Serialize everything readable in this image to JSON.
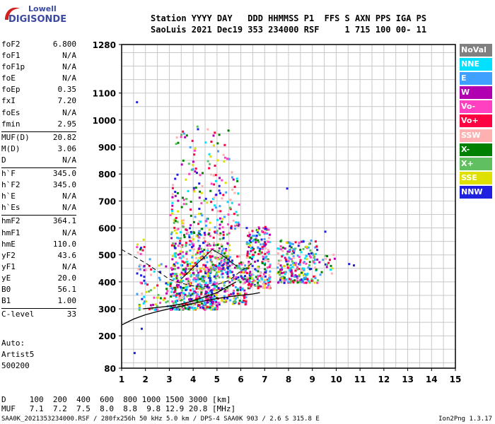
{
  "logo": {
    "line1": "Lowell",
    "line2": "DIGISONDE"
  },
  "header": {
    "line1": "Station YYYY DAY   DDD HHMMSS P1  FFS S AXN PPS IGA PS",
    "line2": "SaoLuis 2021 Dec19 353 234000 RSF     1 715 100 00- 11"
  },
  "params_groups": [
    [
      [
        "foF2",
        "6.800"
      ],
      [
        "foF1",
        "N/A"
      ],
      [
        "foF1p",
        "N/A"
      ],
      [
        "foE",
        "N/A"
      ],
      [
        "foEp",
        "0.35"
      ],
      [
        "fxI",
        "7.20"
      ],
      [
        "foEs",
        "N/A"
      ],
      [
        "fmin",
        "2.95"
      ]
    ],
    [
      [
        "MUF(D)",
        "20.82"
      ],
      [
        "M(D)",
        "3.06"
      ],
      [
        "D",
        "N/A"
      ]
    ],
    [
      [
        "h`F",
        "345.0"
      ],
      [
        "h`F2",
        "345.0"
      ],
      [
        "h`E",
        "N/A"
      ],
      [
        "h`Es",
        "N/A"
      ]
    ],
    [
      [
        "hmF2",
        "364.1"
      ],
      [
        "hmF1",
        "N/A"
      ],
      [
        "hmE",
        "110.0"
      ],
      [
        "yF2",
        "43.6"
      ],
      [
        "yF1",
        "N/A"
      ],
      [
        "yE",
        "20.0"
      ],
      [
        "B0",
        "56.1"
      ],
      [
        "B1",
        "1.00"
      ]
    ],
    [
      [
        "C-level",
        "33"
      ]
    ]
  ],
  "auto_block": [
    "Auto:",
    "Artist5",
    "500200"
  ],
  "muf_table": {
    "line1": "D     100  200  400  600  800 1000 1500 3000 [km]",
    "line2": "MUF   7.1  7.2  7.5  8.0  8.8  9.8 12.9 20.8 [MHz]"
  },
  "footer": {
    "left": "SAA0K_2021353234000.RSF / 280fx256h 50 kHz 5.0 km / DPS-4 SAA0K 903 / 2.6 S 315.8 E",
    "right": "Ion2Png 1.3.17"
  },
  "legend": [
    {
      "label": "NoVal",
      "color": "#808080"
    },
    {
      "label": "NNE",
      "color": "#00e0ff"
    },
    {
      "label": "E",
      "color": "#40a0ff"
    },
    {
      "label": "W",
      "color": "#b000b0"
    },
    {
      "label": "Vo-",
      "color": "#ff40c0"
    },
    {
      "label": "Vo+",
      "color": "#ff0040"
    },
    {
      "label": "SSW",
      "color": "#ffb0b0"
    },
    {
      "label": "X-",
      "color": "#008000"
    },
    {
      "label": "X+",
      "color": "#60c060"
    },
    {
      "label": "SSE",
      "color": "#e0e000"
    },
    {
      "label": "NNW",
      "color": "#2020e0"
    }
  ],
  "chart_data": {
    "type": "scatter",
    "xlim": [
      1,
      15
    ],
    "ylim": [
      80,
      1280
    ],
    "x_ticks": [
      1,
      2,
      3,
      4,
      5,
      6,
      7,
      8,
      9,
      10,
      11,
      12,
      13,
      14,
      15
    ],
    "y_ticks": [
      80,
      200,
      300,
      400,
      500,
      600,
      700,
      800,
      900,
      1000,
      1100,
      1280
    ],
    "grid": true,
    "profile_curve": [
      [
        1.0,
        240
      ],
      [
        1.5,
        262
      ],
      [
        2.0,
        278
      ],
      [
        2.5,
        290
      ],
      [
        3.0,
        300
      ],
      [
        3.5,
        310
      ],
      [
        4.0,
        320
      ],
      [
        4.5,
        330
      ],
      [
        5.0,
        338
      ],
      [
        5.5,
        345
      ],
      [
        6.0,
        350
      ],
      [
        6.5,
        355
      ],
      [
        6.8,
        360
      ]
    ],
    "ordinary_trace": [
      [
        1.9,
        300
      ],
      [
        2.5,
        305
      ],
      [
        3.0,
        310
      ],
      [
        3.5,
        318
      ],
      [
        4.0,
        330
      ],
      [
        4.5,
        345
      ],
      [
        5.0,
        360
      ],
      [
        5.5,
        385
      ],
      [
        5.8,
        400
      ]
    ],
    "dashed_curve": [
      [
        1.0,
        520
      ],
      [
        1.5,
        495
      ],
      [
        2.0,
        470
      ],
      [
        2.5,
        440
      ],
      [
        3.0,
        410
      ],
      [
        3.5,
        395
      ],
      [
        4.0,
        385
      ],
      [
        4.5,
        383
      ],
      [
        5.0,
        390
      ],
      [
        5.5,
        405
      ],
      [
        6.0,
        440
      ],
      [
        6.5,
        470
      ]
    ],
    "extra_trace": [
      [
        3.5,
        410
      ],
      [
        4.2,
        470
      ],
      [
        4.8,
        520
      ],
      [
        5.2,
        500
      ],
      [
        5.8,
        460
      ]
    ],
    "clusters": [
      {
        "x": [
          3.0,
          5.0
        ],
        "y": [
          300,
          450
        ],
        "n": 420,
        "seed": 1
      },
      {
        "x": [
          3.0,
          5.5
        ],
        "y": [
          450,
          600
        ],
        "n": 280,
        "seed": 2
      },
      {
        "x": [
          3.0,
          6.0
        ],
        "y": [
          600,
          800
        ],
        "n": 140,
        "seed": 3
      },
      {
        "x": [
          3.2,
          5.6
        ],
        "y": [
          800,
          980
        ],
        "n": 55,
        "seed": 4
      },
      {
        "x": [
          5.0,
          6.2
        ],
        "y": [
          320,
          500
        ],
        "n": 160,
        "seed": 5
      },
      {
        "x": [
          6.2,
          7.2
        ],
        "y": [
          380,
          610
        ],
        "n": 220,
        "seed": 6
      },
      {
        "x": [
          7.5,
          9.2
        ],
        "y": [
          400,
          560
        ],
        "n": 240,
        "seed": 7
      },
      {
        "x": [
          9.2,
          10.0
        ],
        "y": [
          430,
          510
        ],
        "n": 18,
        "seed": 8
      },
      {
        "x": [
          1.6,
          2.9
        ],
        "y": [
          300,
          470
        ],
        "n": 70,
        "seed": 9
      },
      {
        "x": [
          1.6,
          2.2
        ],
        "y": [
          480,
          560
        ],
        "n": 10,
        "seed": 10
      }
    ],
    "isolated_points": [
      [
        1.5,
        140
      ],
      [
        1.6,
        1070
      ],
      [
        1.8,
        230
      ],
      [
        10.5,
        470
      ],
      [
        10.7,
        465
      ],
      [
        7.9,
        750
      ],
      [
        9.5,
        590
      ]
    ]
  }
}
